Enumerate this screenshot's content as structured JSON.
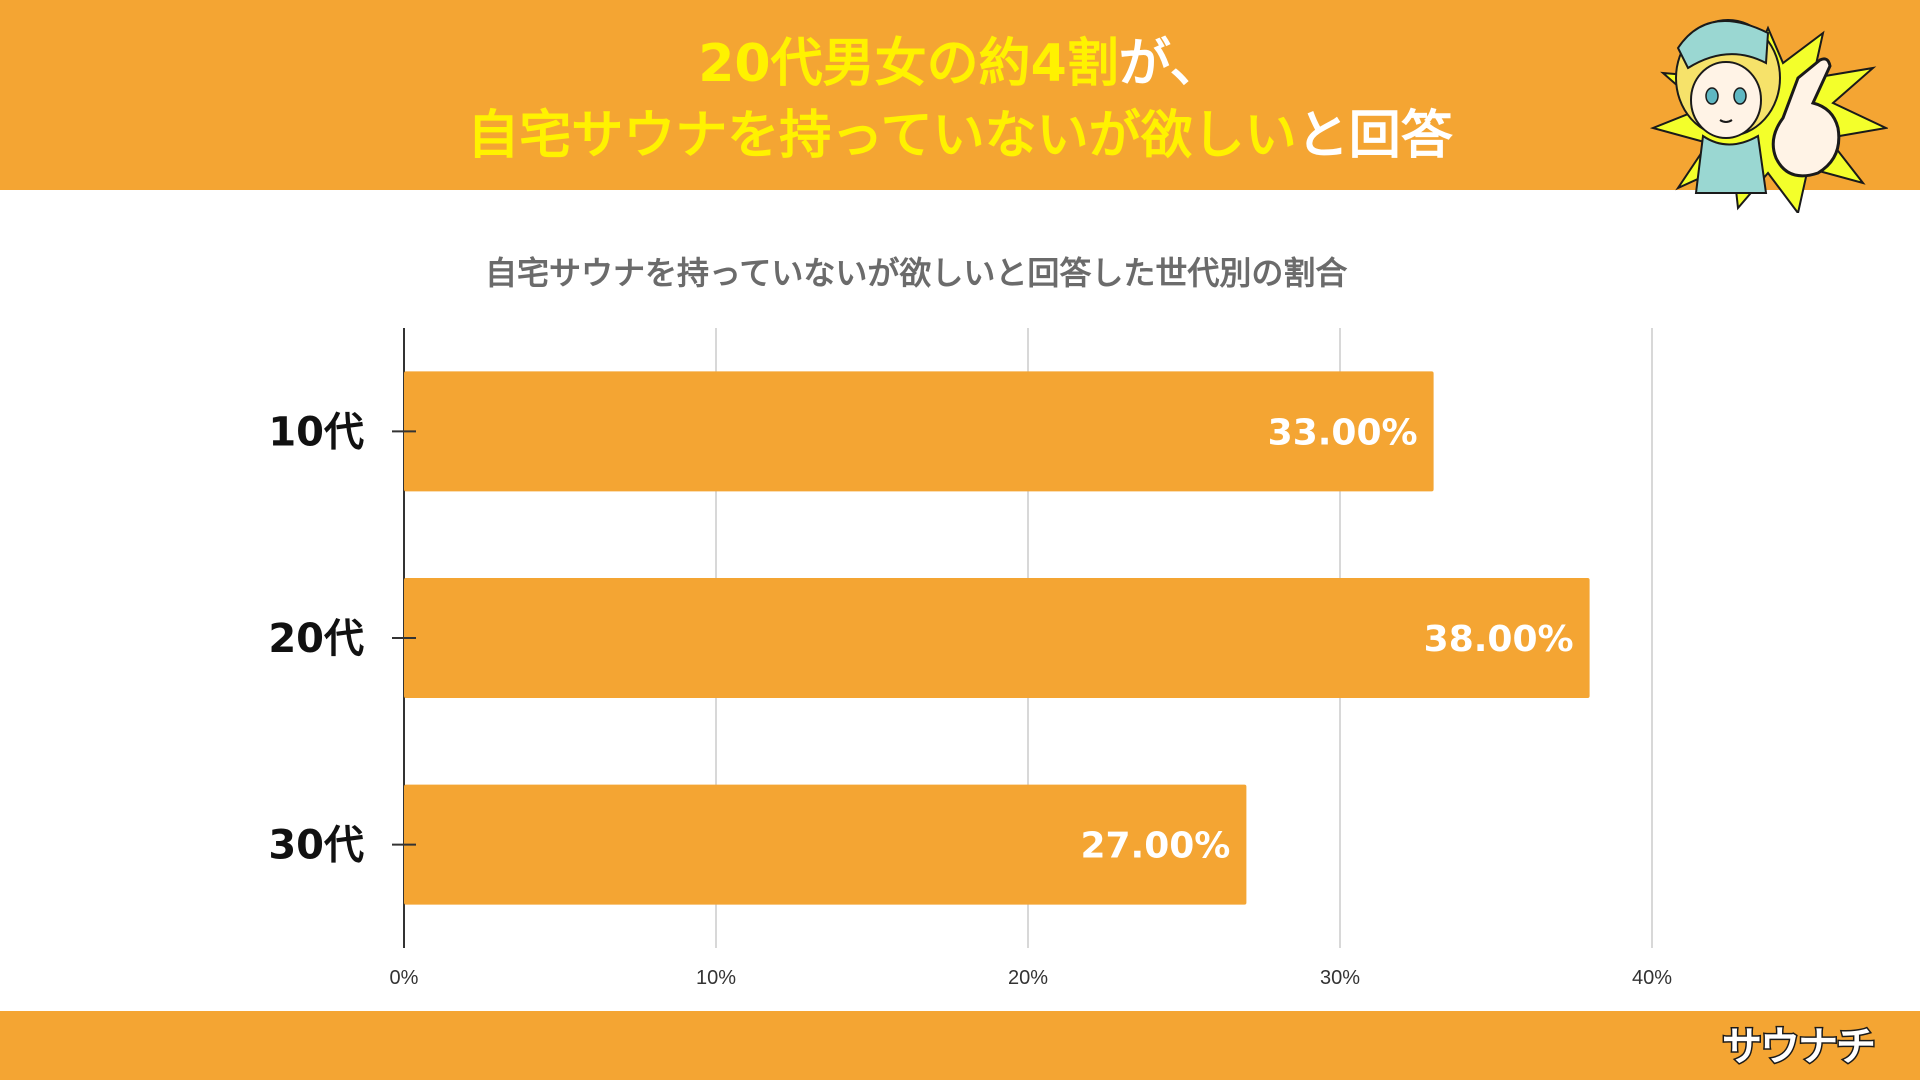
{
  "headline": {
    "line1_highlight": "20代男女の約4割",
    "line1_rest": "が、",
    "line2_highlight": "自宅サウナを持っていないが欲しい",
    "line2_rest": "と回答"
  },
  "brand": {
    "name": "サウナチ"
  },
  "colors": {
    "accent": "#F4A533",
    "highlight": "#FFF200",
    "title_gray": "#6b6b6b"
  },
  "chart_data": {
    "type": "bar",
    "orientation": "horizontal",
    "title": "自宅サウナを持っていないが欲しいと回答した世代別の割合",
    "categories": [
      "10代",
      "20代",
      "30代"
    ],
    "values": [
      33.0,
      38.0,
      27.0
    ],
    "value_labels": [
      "33.00%",
      "38.00%",
      "27.00%"
    ],
    "xlim": [
      0,
      40
    ],
    "xticks": [
      0,
      10,
      20,
      30,
      40
    ],
    "xtick_labels": [
      "0%",
      "10%",
      "20%",
      "30%",
      "40%"
    ],
    "xlabel": "",
    "ylabel": "",
    "grid": true,
    "legend": "none",
    "bar_color": "#F4A533"
  }
}
